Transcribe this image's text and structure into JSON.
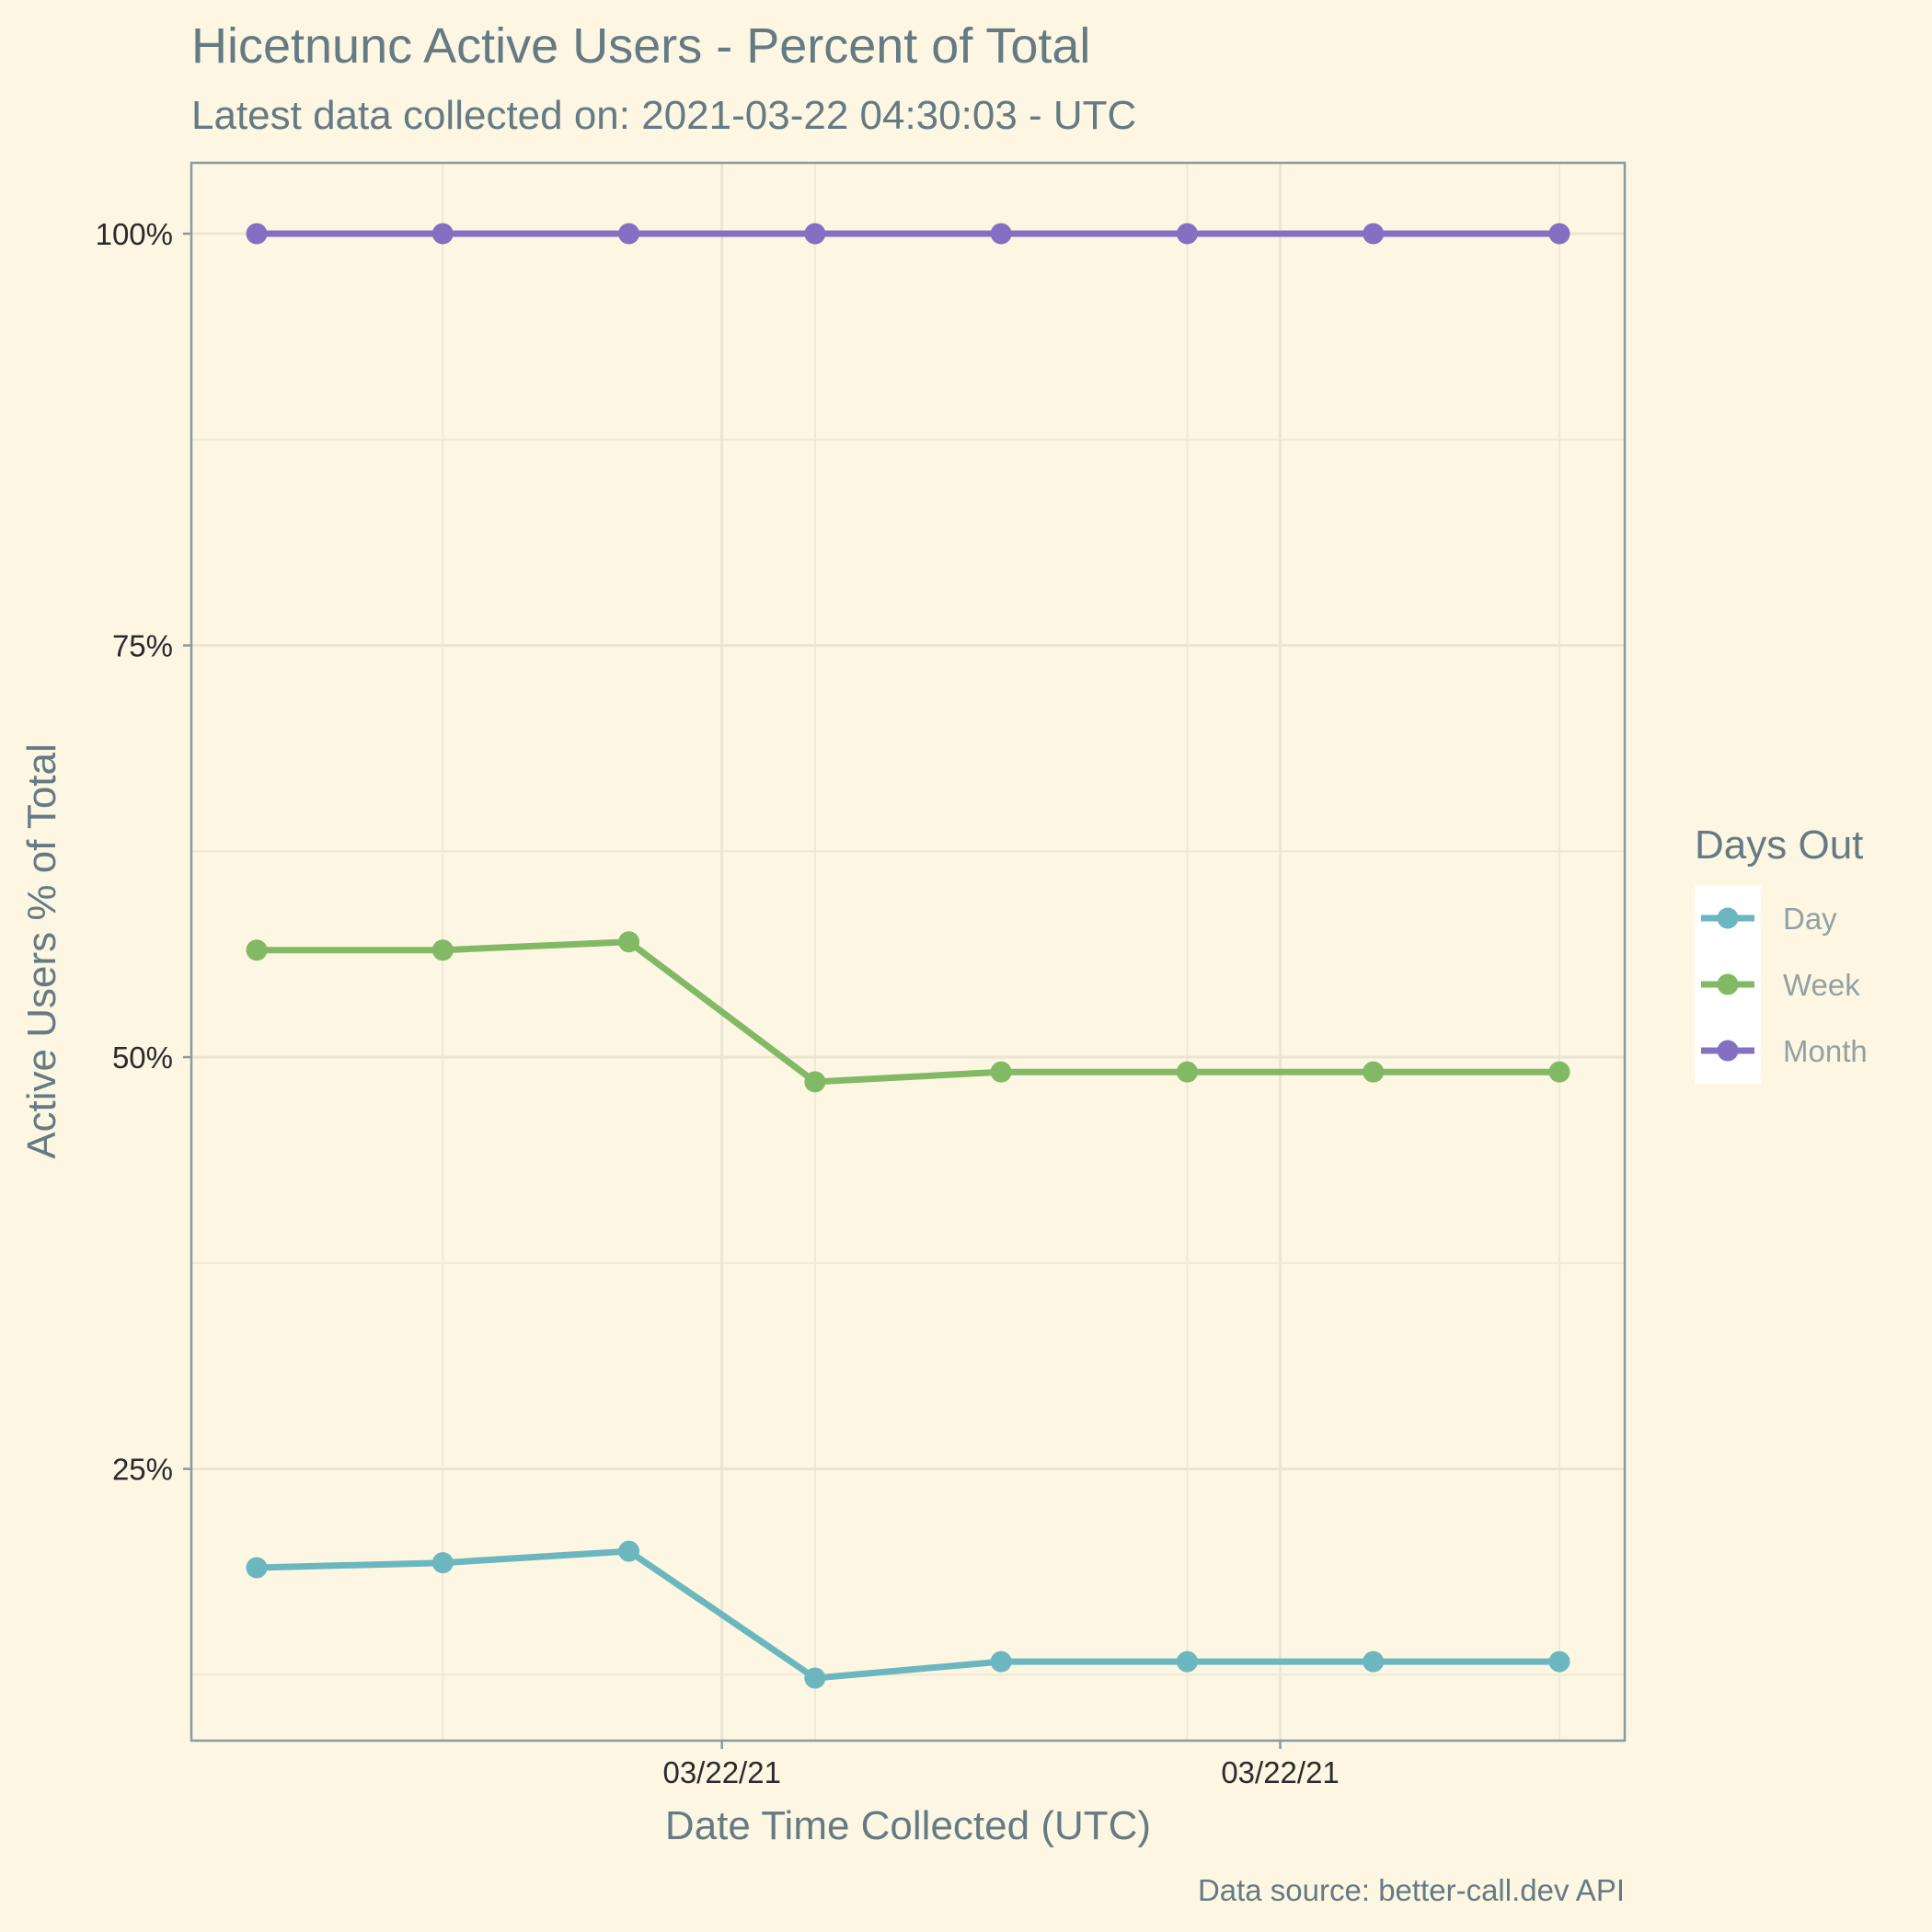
{
  "chart_data": {
    "type": "line",
    "title": "Hicetnunc Active Users - Percent of Total",
    "subtitle": "Latest data collected on: 2021-03-22 04:30:03  - UTC",
    "xlabel": "Date Time Collected (UTC)",
    "ylabel": "Active Users % of Total",
    "caption": "Data source: better-call.dev API",
    "x_tick_labels": [
      "03/22/21",
      "03/22/21"
    ],
    "y_ticks": [
      0.25,
      0.5,
      0.75,
      1.0
    ],
    "y_tick_labels": [
      "25%",
      "50%",
      "75%",
      "100%"
    ],
    "ylim": [
      0.085,
      1.043
    ],
    "grid": true,
    "legend": {
      "title": "Days Out",
      "placement": "right"
    },
    "points_per_series": 8,
    "series": [
      {
        "name": "Day",
        "color": "#6cb6c0",
        "values": [
          0.19,
          0.193,
          0.2,
          0.123,
          0.133,
          0.133,
          0.133,
          0.133
        ]
      },
      {
        "name": "Week",
        "color": "#82b964",
        "values": [
          0.565,
          0.565,
          0.57,
          0.485,
          0.491,
          0.491,
          0.491,
          0.491
        ]
      },
      {
        "name": "Month",
        "color": "#8470c3",
        "values": [
          1.0,
          1.0,
          1.0,
          1.0,
          1.0,
          1.0,
          1.0,
          1.0
        ]
      }
    ]
  }
}
